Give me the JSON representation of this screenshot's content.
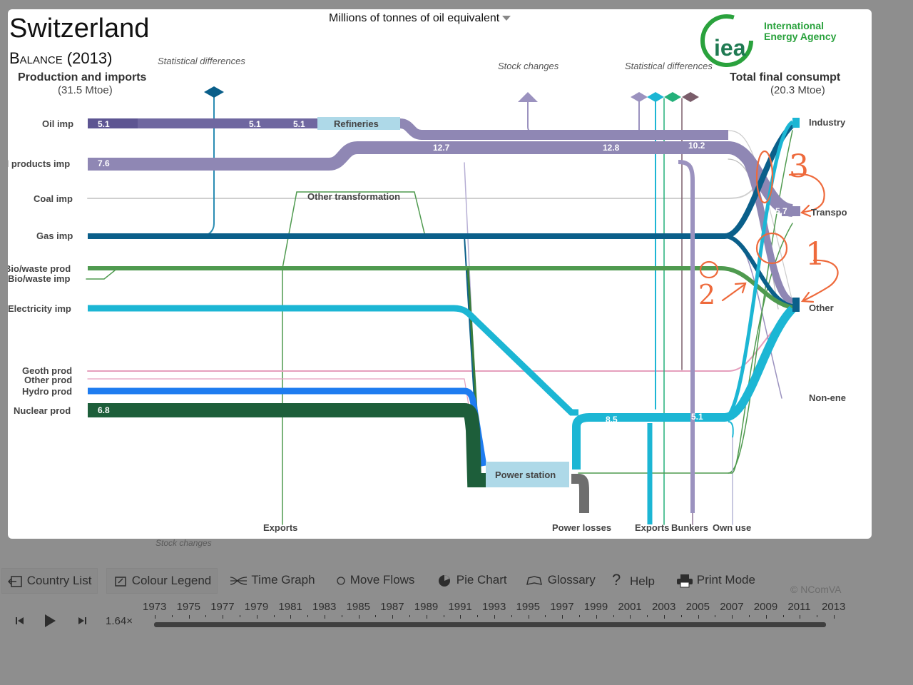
{
  "header": {
    "title": "Switzerland",
    "subtitle": "Balance (2013)",
    "units": "Millions of tonnes of oil equivalent"
  },
  "logo": {
    "text": "iea",
    "name_line1": "International",
    "name_line2": "Energy Agency"
  },
  "left_header": {
    "title": "Production and imports",
    "total": "(31.5 Mtoe)"
  },
  "right_header": {
    "title": "Total final consumpt",
    "total": "(20.3 Mtoe)"
  },
  "source_labels": {
    "oil_imp": "Oil imp",
    "oil_products_imp": "il products imp",
    "coal_imp": "Coal imp",
    "gas_imp": "Gas imp",
    "bio_waste_prod": "Bio/waste prod",
    "bio_waste_imp": "Bio/waste imp",
    "electricity_imp": "Electricity imp",
    "geoth_prod": "Geoth prod",
    "other_prod": "Other prod",
    "hydro_prod": "Hydro prod",
    "nuclear_prod": "Nuclear prod"
  },
  "sink_labels": {
    "industry": "Industry",
    "transport": "Transpo",
    "other": "Other",
    "non_energy": "Non-ene"
  },
  "node_labels": {
    "refineries": "Refineries",
    "other_transformation": "Other transformation",
    "power_station": "Power station"
  },
  "bottom_labels": {
    "exports_left": "Exports",
    "power_losses": "Power losses",
    "exports_right": "Exports",
    "bunkers": "Bunkers",
    "own_use": "Own use"
  },
  "annotations_top": {
    "statistical_differences_left": "Statistical differences",
    "stock_changes": "Stock  changes",
    "statistical_differences_right": "Statistical differences",
    "stock_changes_bottom": "Stock changes"
  },
  "flow_values": {
    "oil_imp_1": "5.1",
    "oil_imp_2": "5.1",
    "oil_imp_3": "5.1",
    "oil_products_imp": "7.6",
    "nuclear_prod": "6.8",
    "refined_1": "12.7",
    "refined_2": "12.8",
    "refined_3": "10.2",
    "transport": "5.7",
    "electricity_1": "8.5",
    "electricity_2": "5.1"
  },
  "handwritten": {
    "mark_1": "1",
    "mark_2": "2",
    "mark_3": "3"
  },
  "toolbar": {
    "country_list": "Country List",
    "colour_legend": "Colour Legend",
    "time_graph": "Time Graph",
    "move_flows": "Move Flows",
    "pie_chart": "Pie Chart",
    "glossary": "Glossary",
    "help": "Help",
    "print_mode": "Print Mode",
    "copyright": "© NComVA"
  },
  "timeline": {
    "speed": "1.64×",
    "years": [
      "1973",
      "1975",
      "1977",
      "1979",
      "1981",
      "1983",
      "1985",
      "1987",
      "1989",
      "1991",
      "1993",
      "1995",
      "1997",
      "1999",
      "2001",
      "2003",
      "2005",
      "2007",
      "2009",
      "2011",
      "2013"
    ]
  },
  "colors": {
    "oil": "#8f87b4",
    "oil_dark": "#6f67a0",
    "gas": "#0a5f8a",
    "bio": "#4f9a4f",
    "electricity": "#1cb6d4",
    "hydro": "#1e7cf0",
    "nuclear": "#1d5e3a",
    "geoth": "#e59fbd",
    "power_losses": "#6e6e6e",
    "node_fill": "#aed9e8",
    "annotation": "#ee6a3c"
  }
}
